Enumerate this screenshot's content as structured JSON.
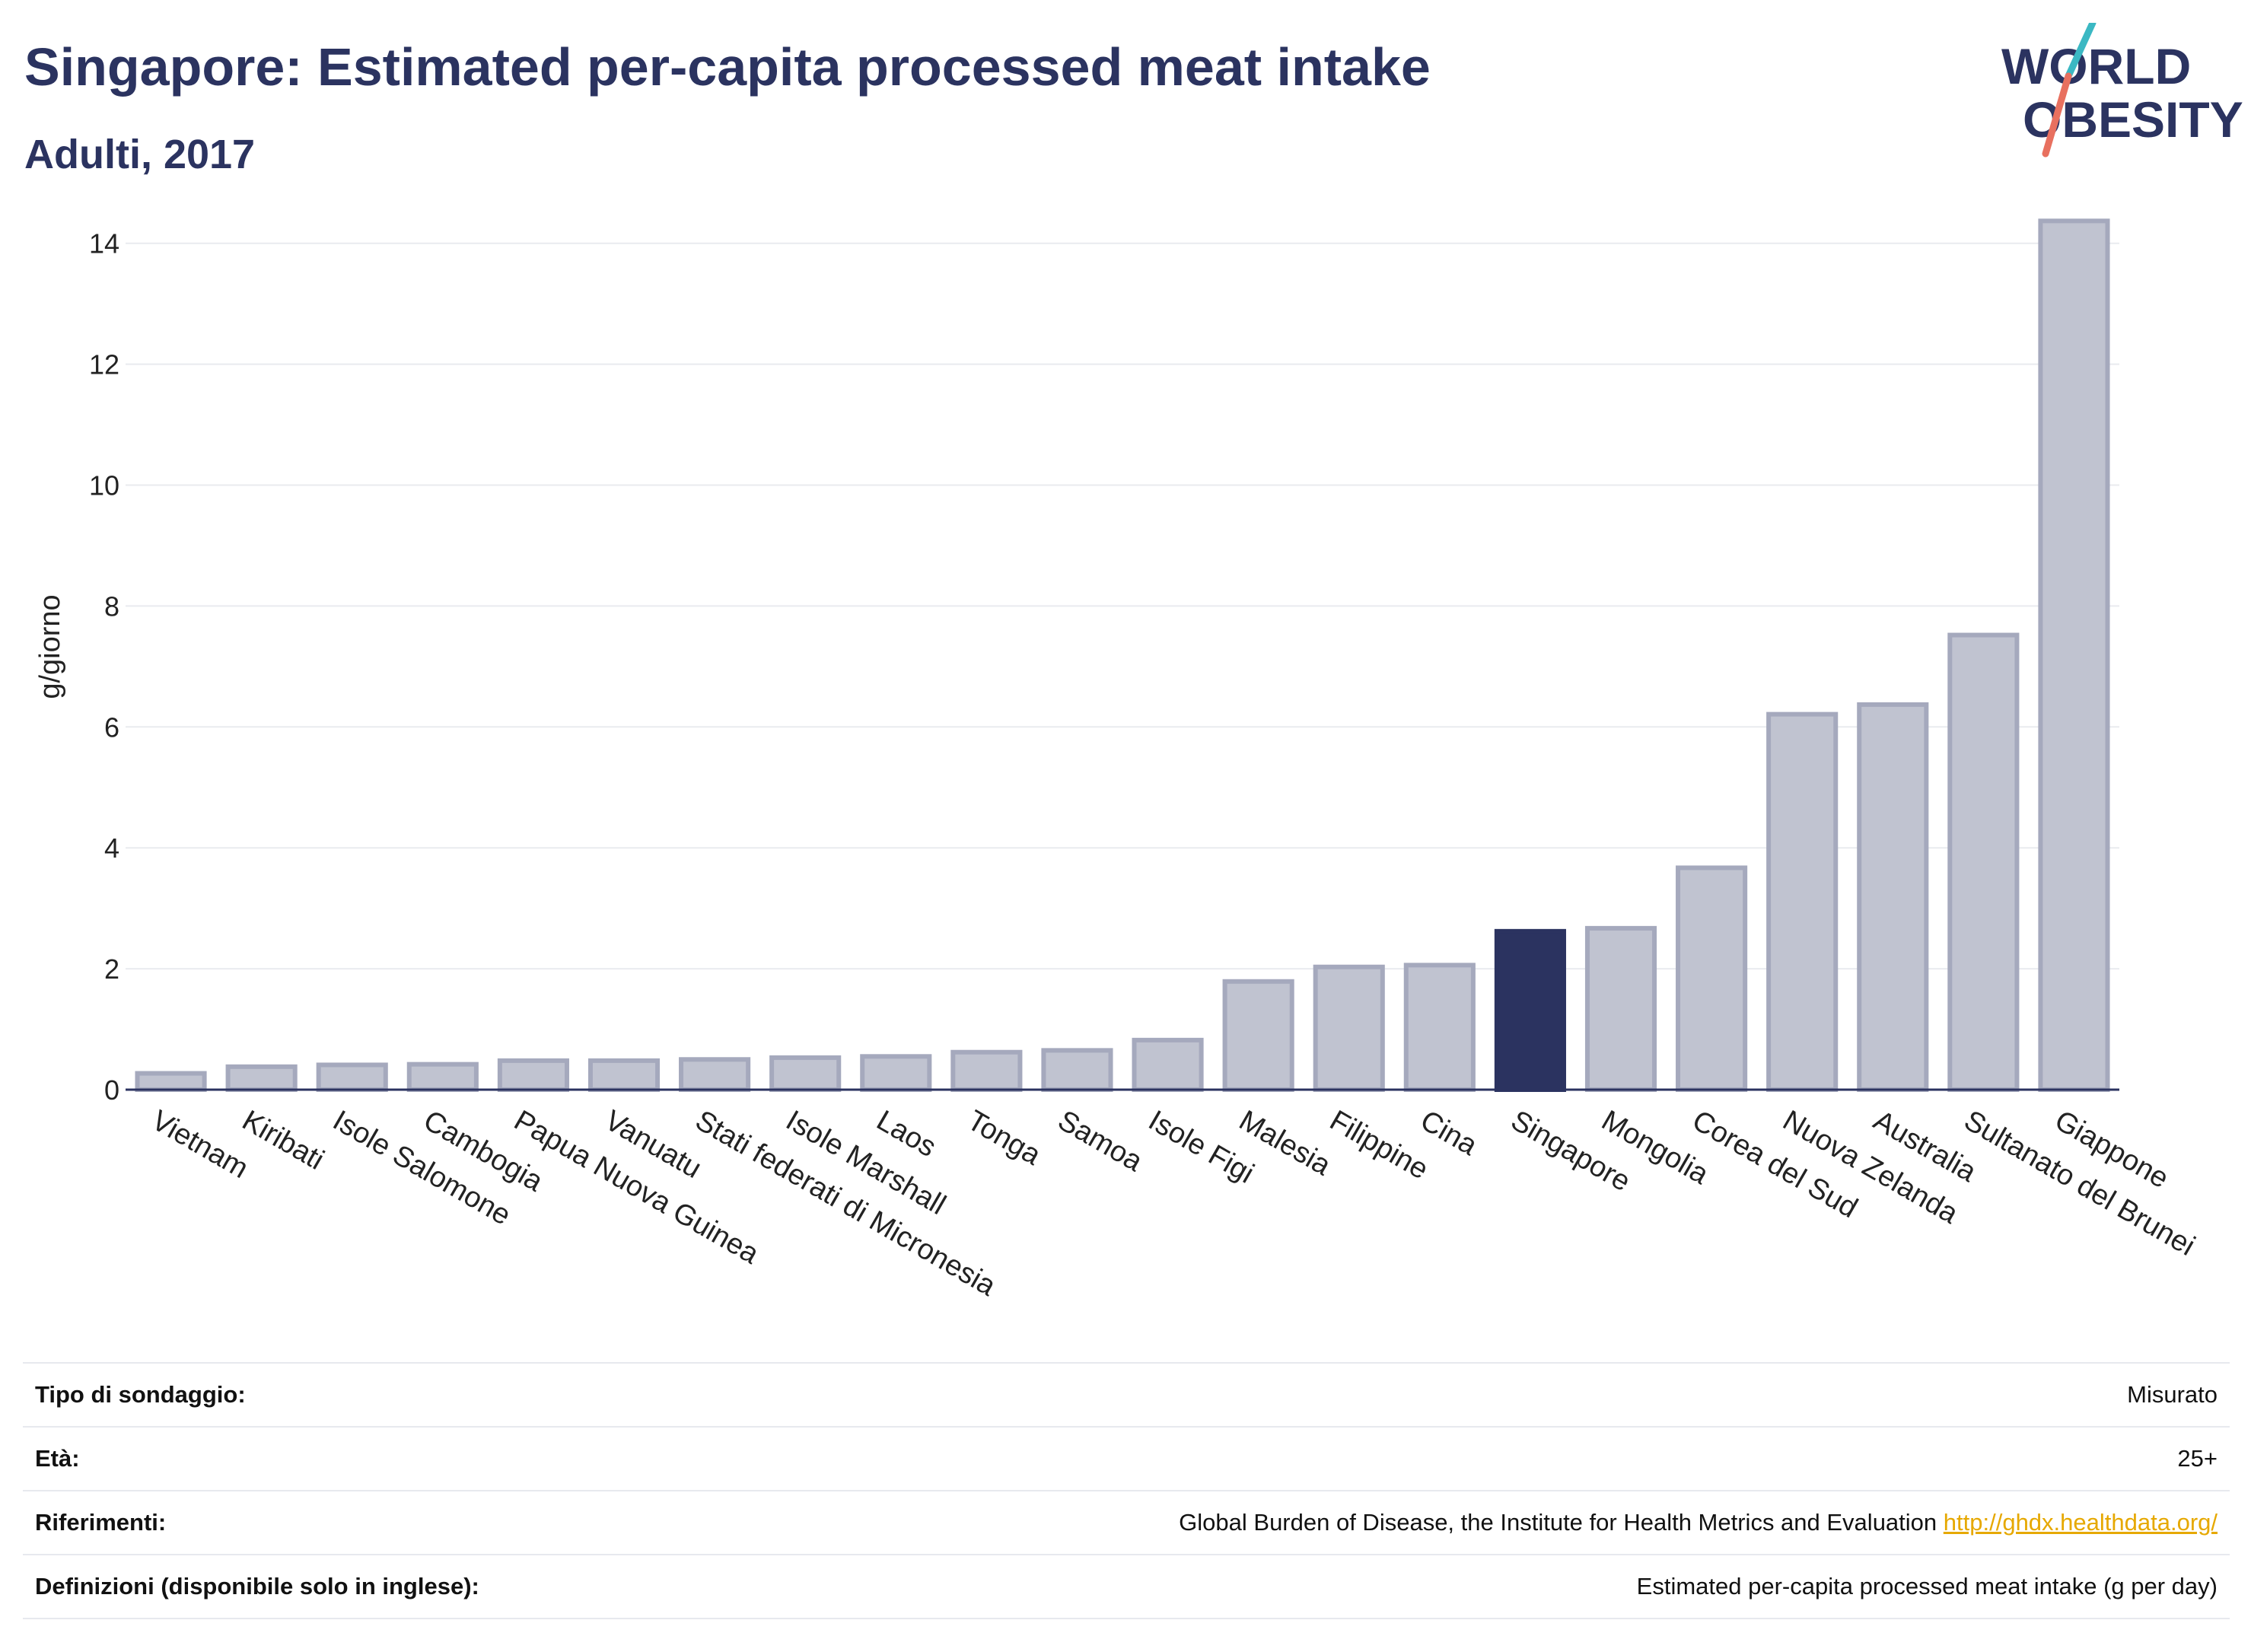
{
  "header": {
    "title": "Singapore: Estimated per-capita processed meat intake",
    "subtitle": "Adulti, 2017"
  },
  "logo": {
    "line1": "WORLD",
    "line2": "OBESITY"
  },
  "chart_data": {
    "type": "bar",
    "ylabel": "g/giorno",
    "ylim": [
      0,
      14.5
    ],
    "yticks": [
      0,
      2,
      4,
      6,
      8,
      10,
      12,
      14
    ],
    "grid": true,
    "highlight": "Singapore",
    "colors": {
      "default": "#c0c3d0",
      "default_stroke": "#a5a9bd",
      "highlight": "#2b3360"
    },
    "categories": [
      "Vietnam",
      "Kiribati",
      "Isole Salomone",
      "Cambogia",
      "Papua Nuova Guinea",
      "Vanuatu",
      "Stati federati di Micronesia",
      "Isole Marshall",
      "Laos",
      "Tonga",
      "Samoa",
      "Isole Figi",
      "Malesia",
      "Filippine",
      "Cina",
      "Singapore",
      "Mongolia",
      "Corea del Sud",
      "Nuova Zelanda",
      "Australia",
      "Sultanato del Brunei",
      "Giappone"
    ],
    "values": [
      0.27,
      0.38,
      0.41,
      0.42,
      0.48,
      0.48,
      0.5,
      0.53,
      0.55,
      0.62,
      0.65,
      0.82,
      1.79,
      2.03,
      2.06,
      2.62,
      2.67,
      3.67,
      6.21,
      6.37,
      7.52,
      14.37
    ]
  },
  "info": [
    {
      "label": "Tipo di sondaggio:",
      "value": "Misurato"
    },
    {
      "label": "Età:",
      "value": "25+"
    },
    {
      "label": "Riferimenti:",
      "value": "Global Burden of Disease, the Institute for Health Metrics and Evaluation",
      "link": "http://ghdx.healthdata.org/"
    },
    {
      "label": "Definizioni (disponibile solo in inglese):",
      "value": "Estimated per-capita processed meat intake (g per day)"
    }
  ]
}
